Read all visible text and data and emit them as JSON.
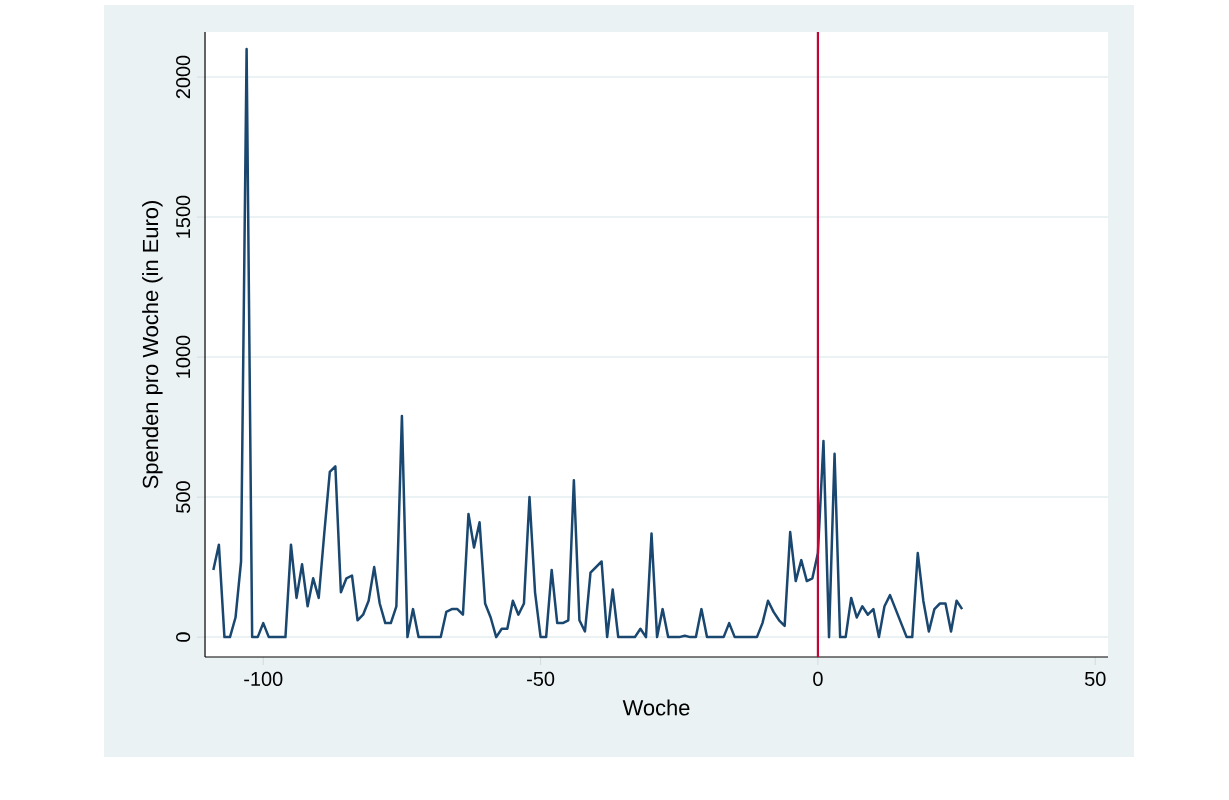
{
  "chart_data": {
    "type": "line",
    "xlabel": "Woche",
    "ylabel": "Spenden pro Woche (in Euro)",
    "x": [
      -109,
      -108,
      -107,
      -106,
      -105,
      -104,
      -103,
      -102,
      -101,
      -100,
      -99,
      -98,
      -97,
      -96,
      -95,
      -94,
      -93,
      -92,
      -91,
      -90,
      -89,
      -88,
      -87,
      -86,
      -85,
      -84,
      -83,
      -82,
      -81,
      -80,
      -79,
      -78,
      -77,
      -76,
      -75,
      -74,
      -73,
      -72,
      -71,
      -70,
      -69,
      -68,
      -67,
      -66,
      -65,
      -64,
      -63,
      -62,
      -61,
      -60,
      -59,
      -58,
      -57,
      -56,
      -55,
      -54,
      -53,
      -52,
      -51,
      -50,
      -49,
      -48,
      -47,
      -46,
      -45,
      -44,
      -43,
      -42,
      -41,
      -40,
      -39,
      -38,
      -37,
      -36,
      -35,
      -34,
      -33,
      -32,
      -31,
      -30,
      -29,
      -28,
      -27,
      -26,
      -25,
      -24,
      -23,
      -22,
      -21,
      -20,
      -19,
      -18,
      -17,
      -16,
      -15,
      -14,
      -13,
      -12,
      -11,
      -10,
      -9,
      -8,
      -7,
      -6,
      -5,
      -4,
      -3,
      -2,
      -1,
      0,
      1,
      2,
      3,
      4,
      5,
      6,
      7,
      8,
      9,
      10,
      11,
      12,
      13,
      14,
      15,
      16,
      17,
      18,
      19,
      20,
      21,
      22,
      23,
      24,
      25,
      26
    ],
    "series": [
      {
        "color": "#1a476f",
        "values": [
          240,
          330,
          0,
          0,
          70,
          270,
          2100,
          0,
          0,
          50,
          0,
          0,
          0,
          0,
          330,
          140,
          260,
          110,
          210,
          140,
          370,
          590,
          610,
          160,
          210,
          220,
          60,
          80,
          130,
          250,
          120,
          50,
          50,
          110,
          790,
          0,
          100,
          0,
          0,
          0,
          0,
          0,
          90,
          100,
          100,
          80,
          440,
          320,
          410,
          120,
          70,
          0,
          30,
          30,
          130,
          80,
          120,
          500,
          160,
          0,
          0,
          240,
          50,
          50,
          60,
          560,
          60,
          20,
          230,
          250,
          270,
          0,
          170,
          0,
          0,
          0,
          0,
          30,
          0,
          370,
          0,
          100,
          0,
          0,
          0,
          5,
          0,
          0,
          100,
          0,
          0,
          0,
          0,
          50,
          0,
          0,
          0,
          0,
          0,
          50,
          130,
          90,
          60,
          40,
          375,
          200,
          275,
          200,
          210,
          300,
          700,
          0,
          655,
          0,
          0,
          140,
          70,
          110,
          80,
          100,
          0,
          110,
          150,
          100,
          50,
          0,
          0,
          300,
          130,
          20,
          100,
          120,
          120,
          20,
          130,
          100
        ]
      }
    ],
    "xlim": [
      -110.5,
      52.3
    ],
    "ylim": [
      -71,
      2161
    ],
    "xticks": [
      -100,
      -50,
      0,
      50
    ],
    "yticks": [
      0,
      500,
      1000,
      1500,
      2000
    ],
    "ref_lines": [
      {
        "axis": "x",
        "value": 0,
        "color": "#c10534"
      }
    ],
    "grid": "y",
    "marker": "none",
    "line_style": "solid"
  }
}
